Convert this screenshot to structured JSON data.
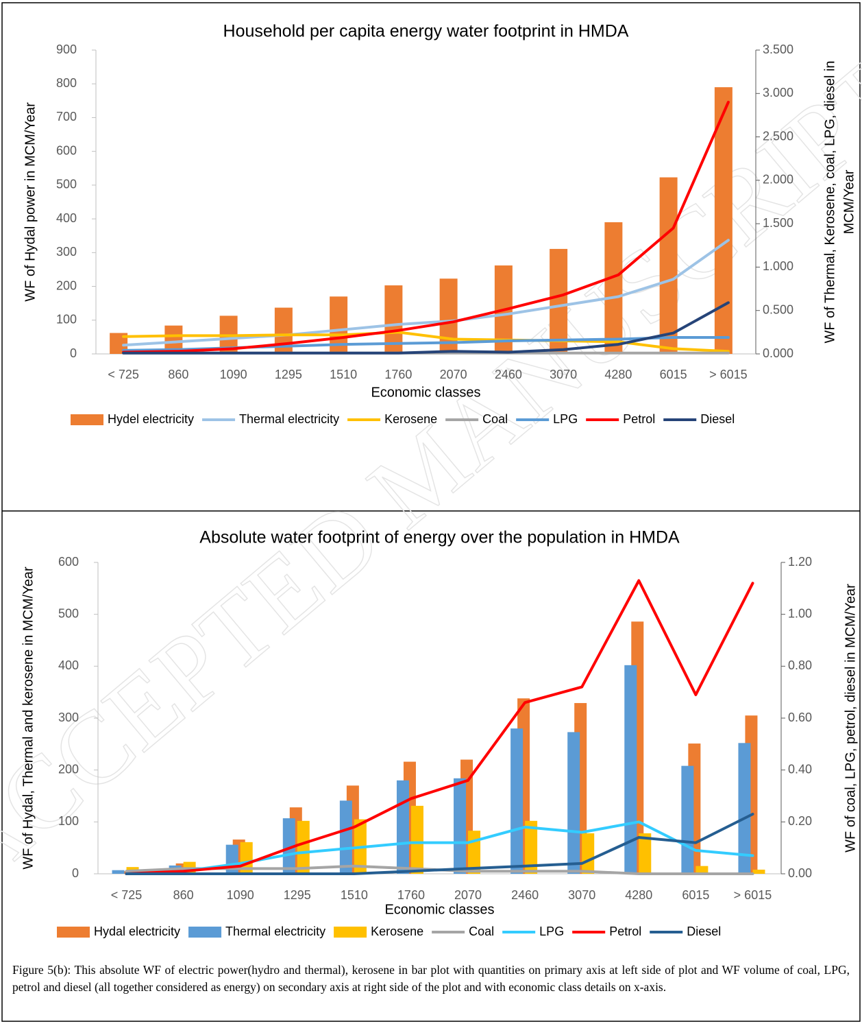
{
  "watermark": "ACCEPTED MANUSCRIPT",
  "caption": "Figure 5(b): This absolute WF of electric power(hydro and thermal), kerosene in bar plot with quantities on primary axis at left side of plot and WF volume of coal, LPG, petrol and diesel (all together considered as energy) on secondary axis at right side of the plot and with economic class details on x-axis.",
  "chart_data": [
    {
      "type": "combo",
      "title": "Household per capita energy water footprint in HMDA",
      "xlabel": "Economic classes",
      "ylabel": "WF of Hydal power in MCM/Year",
      "y2label": [
        "WF of Thermal, Kerosene, coal, LPG, diesel in",
        "MCM/Year"
      ],
      "categories": [
        "< 725",
        "860",
        "1090",
        "1295",
        "1510",
        "1760",
        "2070",
        "2460",
        "3070",
        "4280",
        "6015",
        "> 6015"
      ],
      "ylim": [
        0,
        900
      ],
      "yticks": [
        0,
        100,
        200,
        300,
        400,
        500,
        600,
        700,
        800,
        900
      ],
      "y2lim": [
        0,
        3.5
      ],
      "y2ticks": [
        {
          "value": 0,
          "label": "0.000"
        },
        {
          "value": 0.5,
          "label": "0.500"
        },
        {
          "value": 1,
          "label": "1.000"
        },
        {
          "value": 1.5,
          "label": "1.500"
        },
        {
          "value": 2,
          "label": "2.000"
        },
        {
          "value": 2.5,
          "label": "2.500"
        },
        {
          "value": 3,
          "label": "3.000"
        },
        {
          "value": 3.5,
          "label": "3.500"
        }
      ],
      "legend": "bottom",
      "series": [
        {
          "name": "Hydel electricity",
          "type": "bar",
          "color": "#ed7d31",
          "values": [
            62,
            84,
            113,
            137,
            170,
            203,
            223,
            262,
            311,
            390,
            523,
            790
          ]
        },
        {
          "name": "Thermal electricity",
          "type": "line",
          "axis": "y2",
          "color": "#9dc3e6",
          "values": [
            0.1,
            0.14,
            0.18,
            0.22,
            0.28,
            0.34,
            0.38,
            0.46,
            0.56,
            0.66,
            0.86,
            1.31
          ]
        },
        {
          "name": "Kerosene",
          "type": "line",
          "axis": "y2",
          "color": "#ffc000",
          "values": [
            0.2,
            0.21,
            0.21,
            0.22,
            0.22,
            0.25,
            0.17,
            0.16,
            0.15,
            0.14,
            0.06,
            0.03
          ]
        },
        {
          "name": "Coal",
          "type": "line",
          "axis": "y2",
          "color": "#a5a5a5",
          "values": [
            0.01,
            0.01,
            0.01,
            0.01,
            0.01,
            0.01,
            0.01,
            0.01,
            0.01,
            0.01,
            0.01,
            0.01
          ]
        },
        {
          "name": "LPG",
          "type": "line",
          "axis": "y2",
          "color": "#5b9bd5",
          "values": [
            0.04,
            0.05,
            0.07,
            0.09,
            0.11,
            0.12,
            0.13,
            0.15,
            0.16,
            0.17,
            0.19,
            0.19
          ]
        },
        {
          "name": "Petrol",
          "type": "line",
          "axis": "y2",
          "color": "#ff0000",
          "values": [
            0.02,
            0.03,
            0.06,
            0.12,
            0.19,
            0.27,
            0.37,
            0.52,
            0.68,
            0.91,
            1.45,
            2.9
          ]
        },
        {
          "name": "Diesel",
          "type": "line",
          "axis": "y2",
          "color": "#264478",
          "values": [
            0.01,
            0.01,
            0.01,
            0.01,
            0.01,
            0.01,
            0.03,
            0.02,
            0.05,
            0.11,
            0.24,
            0.59
          ]
        }
      ]
    },
    {
      "type": "combo",
      "title": "Absolute water footprint of energy over the population in HMDA",
      "xlabel": "Economic classes",
      "ylabel": "WF of Hydal, Thermal and kerosene in MCM/Year",
      "y2label": [
        "WF of coal, LPG, petrol, diesel in MCM/Year"
      ],
      "categories": [
        "< 725",
        "860",
        "1090",
        "1295",
        "1510",
        "1760",
        "2070",
        "2460",
        "3070",
        "4280",
        "6015",
        "> 6015"
      ],
      "ylim": [
        0,
        600
      ],
      "yticks": [
        0,
        100,
        200,
        300,
        400,
        500,
        600
      ],
      "y2lim": [
        0,
        1.2
      ],
      "y2ticks": [
        {
          "value": 0,
          "label": "0.00"
        },
        {
          "value": 0.2,
          "label": "0.20"
        },
        {
          "value": 0.4,
          "label": "0.40"
        },
        {
          "value": 0.6,
          "label": "0.60"
        },
        {
          "value": 0.8,
          "label": "0.80"
        },
        {
          "value": 1,
          "label": "1.00"
        },
        {
          "value": 1.2,
          "label": "1.20"
        }
      ],
      "legend": "bottom",
      "series": [
        {
          "name": "Hydal electricity",
          "type": "bar",
          "color": "#ed7d31",
          "values": [
            5,
            20,
            66,
            128,
            170,
            216,
            220,
            338,
            329,
            486,
            251,
            305
          ]
        },
        {
          "name": "Thermal electricity",
          "type": "bar",
          "color": "#5b9bd5",
          "values": [
            7,
            16,
            56,
            107,
            141,
            180,
            184,
            280,
            273,
            402,
            208,
            252
          ]
        },
        {
          "name": "Kerosene",
          "type": "bar",
          "color": "#ffc000",
          "values": [
            13,
            23,
            61,
            102,
            105,
            131,
            83,
            102,
            78,
            78,
            15,
            8
          ]
        },
        {
          "name": "Coal",
          "type": "line",
          "axis": "y2",
          "color": "#a5a5a5",
          "values": [
            0.01,
            0.02,
            0.02,
            0.02,
            0.03,
            0.02,
            0.01,
            0.01,
            0.01,
            0.0,
            0.0,
            0.0
          ]
        },
        {
          "name": "LPG",
          "type": "line",
          "axis": "y2",
          "color": "#33ccff",
          "values": [
            0.0,
            0.01,
            0.04,
            0.08,
            0.1,
            0.12,
            0.12,
            0.18,
            0.16,
            0.2,
            0.09,
            0.07
          ]
        },
        {
          "name": "Petrol",
          "type": "line",
          "axis": "y2",
          "color": "#ff0000",
          "values": [
            0.0,
            0.01,
            0.03,
            0.11,
            0.18,
            0.29,
            0.36,
            0.66,
            0.72,
            1.13,
            0.69,
            1.12
          ]
        },
        {
          "name": "Diesel",
          "type": "line",
          "axis": "y2",
          "color": "#255e91",
          "values": [
            0.0,
            0.0,
            0.0,
            0.0,
            0.0,
            0.01,
            0.02,
            0.03,
            0.04,
            0.14,
            0.12,
            0.23
          ]
        }
      ]
    }
  ]
}
